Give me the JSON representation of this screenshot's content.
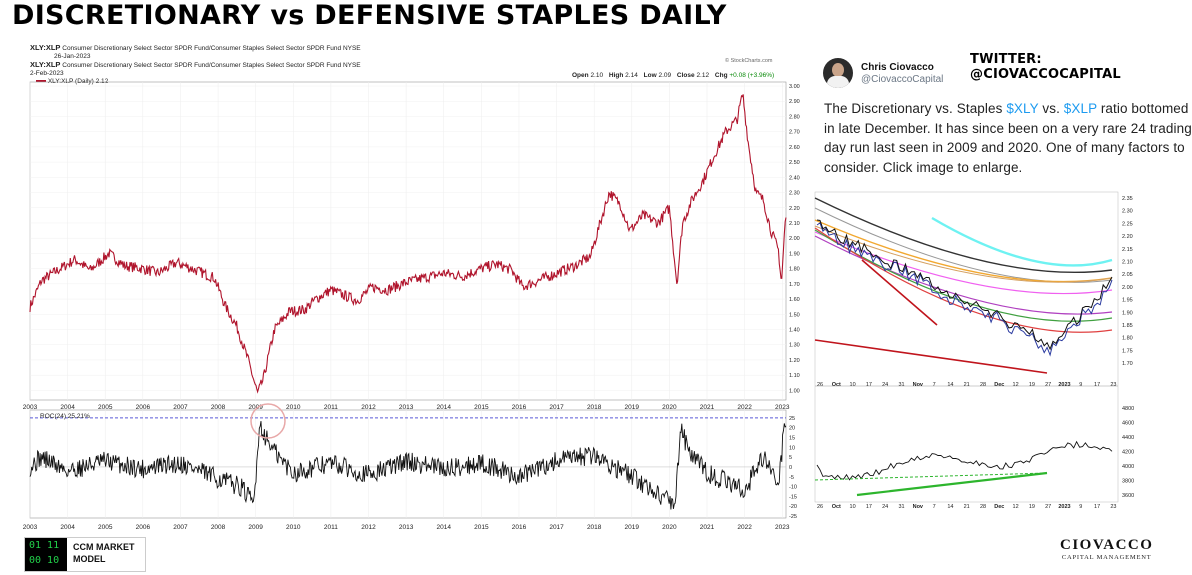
{
  "title": "DISCRETIONARY vs DEFENSIVE STAPLES DAILY",
  "main_chart": {
    "symbol": "XLY:XLP",
    "description": "Consumer Discretionary Select Sector SPDR Fund/Consumer Staples Select Sector SPDR Fund NYSE",
    "date1": "26-Jan-2023",
    "symbol2": "XLY:XLP",
    "description2": "Consumer Discretionary Select Sector SPDR Fund/Consumer Staples Select Sector SPDR Fund NYSE",
    "date2": "2-Feb-2023",
    "legend": "XLY:XLP (Daily) 2.12",
    "attribution": "© StockCharts.com",
    "ohlc": {
      "open_label": "Open",
      "open": "2.10",
      "high_label": "High",
      "high": "2.14",
      "low_label": "Low",
      "low": "2.09",
      "close_label": "Close",
      "close": "2.12",
      "chg_label": "Chg",
      "chg": "+0.08 (+3.96%)"
    },
    "roc_legend": "ROC(24) 25.21%"
  },
  "tweet": {
    "name": "Chris Ciovacco",
    "handle": "@CiovaccoCapital",
    "text_1": "The  Discretionary vs. Staples ",
    "cash_1": "$XLY",
    "text_2": " vs. ",
    "cash_2": "$XLP",
    "text_3": " ratio bottomed in late December. It has since been on a very rare 24 trading-day run last seen in 2009 and 2020. One of many factors to consider. Click image to enlarge."
  },
  "twitter_handle": "TWITTER: @CIOVACCOCAPITAL",
  "ccm_logo": {
    "matrix_1": "01 11",
    "matrix_2": "00 10",
    "label_1": "CCM MARKET",
    "label_2": "MODEL"
  },
  "ciovacco_logo": {
    "name": "CIOVACCO",
    "sub": "CAPITAL MANAGEMENT"
  },
  "chart_data": [
    {
      "type": "line",
      "name": "XLY:XLP price ratio (daily)",
      "x": [
        2003.0,
        2003.3,
        2003.8,
        2004.2,
        2004.6,
        2005.1,
        2005.5,
        2006.0,
        2006.4,
        2006.9,
        2007.3,
        2007.6,
        2007.9,
        2008.2,
        2008.5,
        2008.8,
        2009.05,
        2009.2,
        2009.5,
        2009.9,
        2010.3,
        2010.6,
        2011.0,
        2011.4,
        2011.7,
        2012.1,
        2012.5,
        2013.0,
        2013.5,
        2014.0,
        2014.5,
        2015.0,
        2015.4,
        2015.8,
        2016.1,
        2016.5,
        2017.0,
        2017.5,
        2017.9,
        2018.1,
        2018.4,
        2018.7,
        2018.95,
        2019.3,
        2019.7,
        2020.0,
        2020.2,
        2020.35,
        2020.6,
        2020.9,
        2021.2,
        2021.5,
        2021.8,
        2021.95,
        2022.1,
        2022.3,
        2022.5,
        2022.7,
        2022.9,
        2022.98,
        2023.08
      ],
      "y": [
        1.55,
        1.72,
        1.8,
        1.86,
        1.79,
        1.9,
        1.82,
        1.8,
        1.77,
        1.84,
        1.8,
        1.77,
        1.74,
        1.55,
        1.42,
        1.2,
        0.98,
        1.07,
        1.4,
        1.52,
        1.53,
        1.6,
        1.66,
        1.62,
        1.59,
        1.68,
        1.66,
        1.71,
        1.74,
        1.77,
        1.75,
        1.8,
        1.83,
        1.79,
        1.68,
        1.72,
        1.77,
        1.82,
        1.88,
        2.05,
        2.3,
        2.22,
        2.05,
        2.15,
        2.1,
        2.2,
        1.7,
        2.1,
        2.25,
        2.38,
        2.55,
        2.7,
        2.78,
        2.95,
        2.62,
        2.3,
        2.25,
        2.05,
        1.92,
        1.7,
        2.12
      ],
      "ylim": [
        0.95,
        3.0
      ],
      "xlim": [
        2003,
        2023.1
      ]
    },
    {
      "type": "line",
      "name": "ROC(24)",
      "x": [
        2003.0,
        2003.3,
        2004.0,
        2005.0,
        2006.0,
        2007.0,
        2008.0,
        2008.6,
        2008.95,
        2009.1,
        2009.3,
        2009.6,
        2010.0,
        2011.0,
        2012.0,
        2013.0,
        2014.0,
        2015.0,
        2016.0,
        2017.0,
        2018.0,
        2019.0,
        2020.15,
        2020.3,
        2020.5,
        2021.0,
        2022.0,
        2022.5,
        2022.9,
        2023.08
      ],
      "y": [
        0,
        5,
        -2,
        3,
        -1,
        2,
        -6,
        -10,
        -19,
        22,
        14,
        5,
        -3,
        2,
        -4,
        3,
        -1,
        2,
        -5,
        3,
        6,
        -5,
        -19,
        21,
        8,
        -3,
        -12,
        6,
        -10,
        25
      ],
      "ylim": [
        -25,
        28
      ],
      "xlim": [
        2003,
        2023.1
      ]
    }
  ],
  "axes": {
    "years": [
      "2003",
      "2004",
      "2005",
      "2006",
      "2007",
      "2008",
      "2009",
      "2010",
      "2011",
      "2012",
      "2013",
      "2014",
      "2015",
      "2016",
      "2017",
      "2018",
      "2019",
      "2020",
      "2021",
      "2022",
      "2023"
    ],
    "price_ticks": [
      "3.00",
      "2.90",
      "2.80",
      "2.70",
      "2.60",
      "2.50",
      "2.40",
      "2.30",
      "2.20",
      "2.10",
      "2.00",
      "1.90",
      "1.80",
      "1.70",
      "1.60",
      "1.50",
      "1.40",
      "1.30",
      "1.20",
      "1.10",
      "1.00"
    ],
    "roc_ticks": [
      "25",
      "20",
      "15",
      "10",
      "5",
      "0",
      "-5",
      "-10",
      "-15",
      "-20",
      "-25"
    ],
    "inset_price_ticks": [
      "2.35",
      "2.30",
      "2.25",
      "2.20",
      "2.15",
      "2.10",
      "2.05",
      "2.00",
      "1.95",
      "1.90",
      "1.85",
      "1.80",
      "1.75",
      "1.70"
    ],
    "inset_spx_ticks": [
      "4800",
      "4600",
      "4400",
      "4200",
      "4000",
      "3800",
      "3600"
    ],
    "inset_x_labels": [
      "26",
      "Oct",
      "10",
      "17",
      "24",
      "31",
      "Nov",
      "7",
      "14",
      "21",
      "28",
      "Dec",
      "12",
      "19",
      "27",
      "2023",
      "9",
      "17",
      "23"
    ],
    "inset_x_labels_bottom": [
      "26",
      "Oct",
      "10",
      "17",
      "24",
      "31",
      "Nov",
      "7",
      "14",
      "21",
      "28",
      "Dec",
      "12",
      "19",
      "27",
      "2023",
      "9",
      "17",
      "23"
    ]
  },
  "colors": {
    "price_line": "#b0142c",
    "roc_line": "#111111",
    "dashed_ref": "#5a5ad8",
    "twitter_cash": "#1d9bf0",
    "trend_red": "#c0141c",
    "trend_green": "#2db52d"
  }
}
